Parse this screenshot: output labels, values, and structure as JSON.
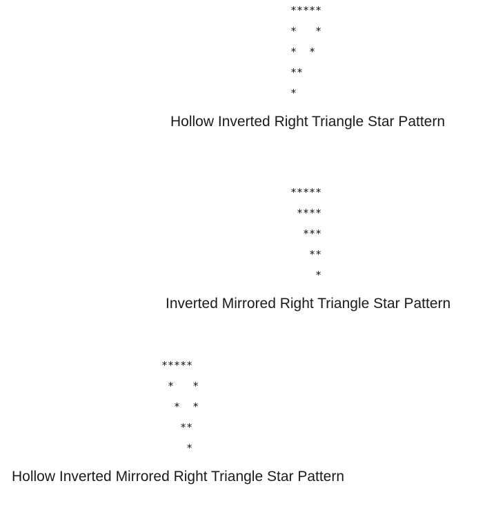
{
  "figures": [
    {
      "pattern": "*****\n*   *\n*  *\n**\n*",
      "caption": "Hollow Inverted Right Triangle Star Pattern"
    },
    {
      "pattern": "*****\n ****\n  ***\n   **\n    *",
      "caption": "Inverted Mirrored Right Triangle Star Pattern"
    },
    {
      "pattern": "*****\n *   *\n  *  *\n   **\n    *",
      "caption": "Hollow Inverted Mirrored Right Triangle Star Pattern"
    }
  ]
}
